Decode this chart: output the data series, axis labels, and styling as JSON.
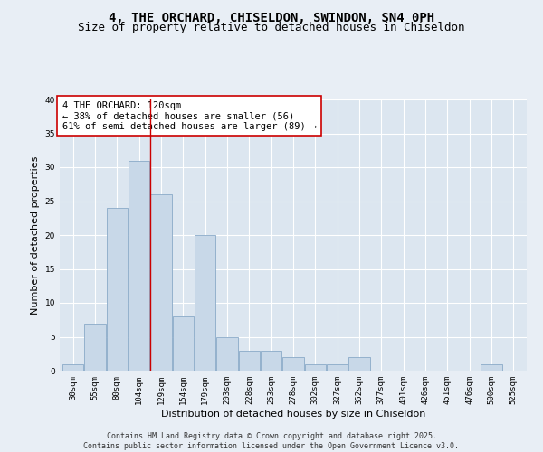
{
  "title": "4, THE ORCHARD, CHISELDON, SWINDON, SN4 0PH",
  "subtitle": "Size of property relative to detached houses in Chiseldon",
  "xlabel": "Distribution of detached houses by size in Chiseldon",
  "ylabel": "Number of detached properties",
  "categories": [
    "30sqm",
    "55sqm",
    "80sqm",
    "104sqm",
    "129sqm",
    "154sqm",
    "179sqm",
    "203sqm",
    "228sqm",
    "253sqm",
    "278sqm",
    "302sqm",
    "327sqm",
    "352sqm",
    "377sqm",
    "401sqm",
    "426sqm",
    "451sqm",
    "476sqm",
    "500sqm",
    "525sqm"
  ],
  "values": [
    1,
    7,
    24,
    31,
    26,
    8,
    20,
    5,
    3,
    3,
    2,
    1,
    1,
    2,
    0,
    0,
    0,
    0,
    0,
    1,
    0
  ],
  "bar_color": "#c8d8e8",
  "bar_edge_color": "#8aaac8",
  "background_color": "#e8eef5",
  "plot_bg_color": "#dce6f0",
  "grid_color": "#ffffff",
  "vline_x_index": 3.5,
  "vline_color": "#cc0000",
  "annotation_text": "4 THE ORCHARD: 120sqm\n← 38% of detached houses are smaller (56)\n61% of semi-detached houses are larger (89) →",
  "annotation_box_color": "#ffffff",
  "annotation_box_edge_color": "#cc0000",
  "ylim": [
    0,
    40
  ],
  "yticks": [
    0,
    5,
    10,
    15,
    20,
    25,
    30,
    35,
    40
  ],
  "footer": "Contains HM Land Registry data © Crown copyright and database right 2025.\nContains public sector information licensed under the Open Government Licence v3.0.",
  "title_fontsize": 10,
  "subtitle_fontsize": 9,
  "axis_label_fontsize": 8,
  "tick_fontsize": 6.5,
  "annotation_fontsize": 7.5,
  "footer_fontsize": 6
}
